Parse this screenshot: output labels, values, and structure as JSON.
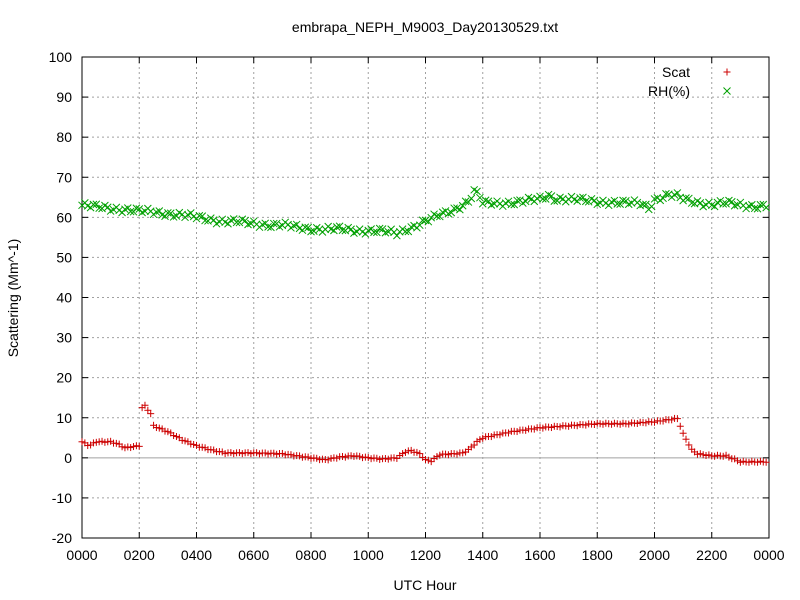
{
  "chart_data": {
    "type": "scatter",
    "title": "embrapa_NEPH_M9003_Day20130529.txt",
    "xlabel": "UTC Hour",
    "ylabel": "Scattering (Mm^-1)",
    "xlim": [
      0,
      2400
    ],
    "ylim": [
      -20,
      100
    ],
    "x_tick_labels": [
      "0000",
      "0200",
      "0400",
      "0600",
      "0800",
      "1000",
      "1200",
      "1400",
      "1600",
      "1800",
      "2000",
      "2200",
      "0000"
    ],
    "y_ticks": [
      -20,
      -10,
      0,
      10,
      20,
      30,
      40,
      50,
      60,
      70,
      80,
      90,
      100
    ],
    "grid": true,
    "zero_line": true,
    "legend_position": "top-right",
    "colors": {
      "Scat": "#cc0000",
      "RH(%)": "#00a000",
      "grid": "#a0a0a0",
      "zero_line": "#a0a0a0"
    },
    "series": [
      {
        "name": "Scat",
        "marker": "plus",
        "x": [
          0,
          25,
          50,
          100,
          125,
          150,
          200,
          210,
          220,
          240,
          250,
          300,
          350,
          400,
          450,
          500,
          600,
          700,
          750,
          800,
          850,
          900,
          950,
          1000,
          1050,
          1100,
          1130,
          1150,
          1180,
          1200,
          1220,
          1250,
          1300,
          1330,
          1350,
          1380,
          1400,
          1500,
          1600,
          1700,
          1800,
          1900,
          2000,
          2050,
          2080,
          2090,
          2100,
          2130,
          2150,
          2200,
          2250,
          2300,
          2350,
          2390
        ],
        "y": [
          4,
          3,
          4,
          4,
          3.5,
          2.5,
          3,
          12.5,
          13,
          11,
          8,
          6.5,
          4.5,
          3,
          2,
          1.2,
          1.2,
          1,
          0.5,
          0,
          -0.5,
          0.2,
          0.5,
          0,
          -0.3,
          0,
          1.5,
          1.8,
          1,
          -0.5,
          -0.8,
          0.8,
          1,
          1.2,
          2,
          4,
          5,
          6.5,
          7.5,
          8,
          8.5,
          8.5,
          9,
          9.5,
          9.8,
          8,
          6,
          2,
          1,
          0.5,
          0.5,
          -1,
          -1,
          -1
        ]
      },
      {
        "name": "RH(%)",
        "marker": "cross",
        "x": [
          0,
          50,
          100,
          150,
          200,
          250,
          300,
          350,
          400,
          450,
          500,
          550,
          600,
          650,
          700,
          750,
          800,
          850,
          900,
          950,
          1000,
          1050,
          1100,
          1130,
          1150,
          1200,
          1250,
          1300,
          1350,
          1370,
          1390,
          1400,
          1450,
          1500,
          1550,
          1600,
          1630,
          1650,
          1700,
          1750,
          1800,
          1850,
          1900,
          1950,
          1980,
          2000,
          2050,
          2080,
          2100,
          2150,
          2200,
          2250,
          2300,
          2350,
          2390
        ],
        "y": [
          63,
          62.5,
          62.3,
          62,
          61.5,
          61.3,
          61,
          60.5,
          60,
          59.5,
          59,
          58.8,
          58.5,
          58.2,
          58,
          57.5,
          57.2,
          57,
          57,
          56.8,
          56.7,
          56.5,
          56,
          57,
          57.5,
          59,
          60.5,
          62,
          64,
          66.5,
          65,
          63.5,
          63.5,
          63.8,
          64,
          64.5,
          65.5,
          64.8,
          64.5,
          64.2,
          64,
          63.8,
          63.5,
          63.5,
          62.5,
          64.5,
          65.5,
          65.2,
          64.5,
          63.8,
          63.2,
          63.5,
          63.2,
          62.8,
          62.8
        ]
      }
    ]
  }
}
